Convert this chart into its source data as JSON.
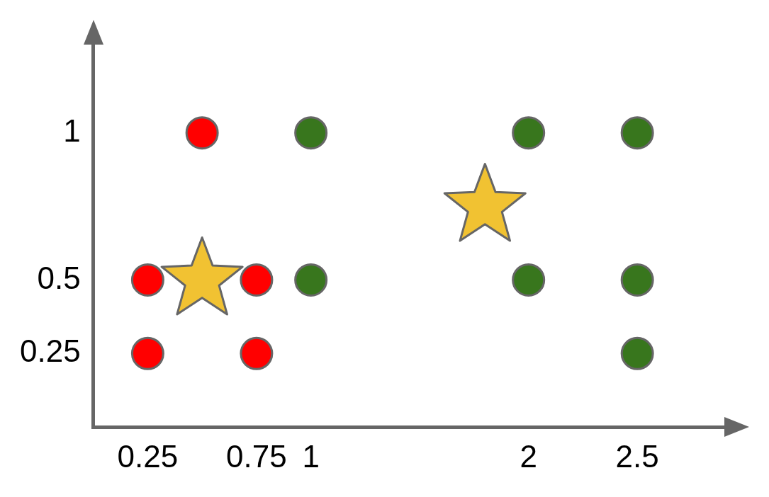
{
  "chart_data": {
    "type": "scatter",
    "xlim": [
      0,
      2.9
    ],
    "ylim": [
      0,
      1.3
    ],
    "xticks": [
      0.25,
      0.75,
      1,
      2,
      2.5
    ],
    "yticks": [
      0.25,
      0.5,
      1
    ],
    "grid": false,
    "series": [
      {
        "color": "#ff0000",
        "marker": "circle",
        "x": [
          0.25,
          0.25,
          0.5,
          0.75,
          0.75
        ],
        "values": [
          0.5,
          0.25,
          1,
          0.5,
          0.25
        ]
      },
      {
        "color": "#38761d",
        "marker": "circle",
        "x": [
          1,
          1,
          2,
          2,
          2.5,
          2.5,
          2.5
        ],
        "values": [
          1,
          0.5,
          1,
          0.5,
          1,
          0.5,
          0.25
        ]
      },
      {
        "color": "#f1c232",
        "marker": "star",
        "x": [
          0.5,
          1.8
        ],
        "values": [
          0.5,
          0.75
        ]
      }
    ]
  }
}
